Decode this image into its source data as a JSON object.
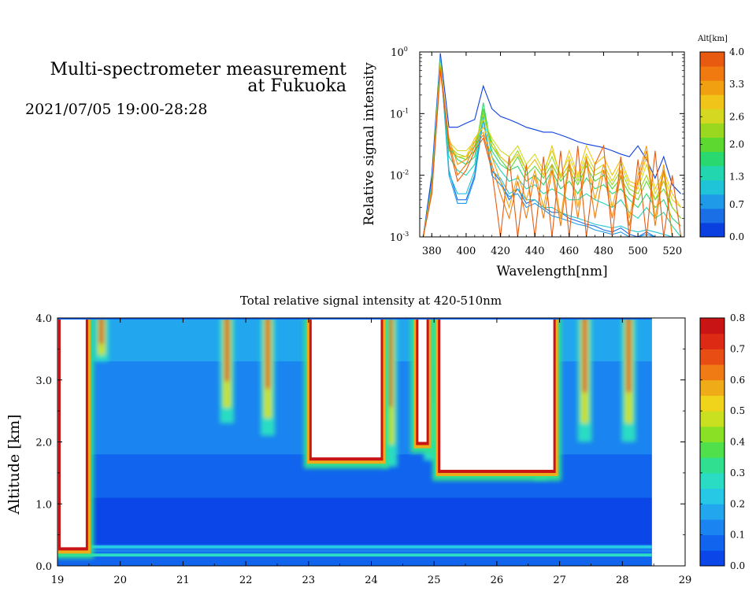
{
  "header": {
    "title_line1": "Multi-spectrometer measurement",
    "title_line2": "at Fukuoka",
    "date_range": "2021/07/05 19:00-28:28"
  },
  "chart_data": [
    {
      "type": "line",
      "xlabel": "Wavelength[nm]",
      "ylabel": "Relative signal intensity",
      "y_scale": "log",
      "xlim": [
        373,
        527
      ],
      "ylim": [
        0.001,
        1
      ],
      "x_ticks": [
        380,
        400,
        420,
        440,
        460,
        480,
        500,
        520
      ],
      "y_ticks": [
        {
          "value": 1,
          "base": "10",
          "exp": "0"
        },
        {
          "value": 0.1,
          "base": "10",
          "exp": "-1"
        },
        {
          "value": 0.01,
          "base": "10",
          "exp": "-2"
        },
        {
          "value": 0.001,
          "base": "10",
          "exp": "-3"
        }
      ],
      "x": [
        375,
        380,
        385,
        390,
        395,
        400,
        405,
        410,
        415,
        420,
        425,
        430,
        435,
        440,
        445,
        450,
        455,
        460,
        465,
        470,
        475,
        480,
        485,
        490,
        495,
        500,
        505,
        510,
        515,
        520,
        525
      ],
      "colorbar": {
        "title": "Alt[km]",
        "min": 0.0,
        "max": 4.0,
        "tick_labels": [
          "4.0",
          "3.3",
          "2.6",
          "2.0",
          "1.3",
          "0.7",
          "0.0"
        ],
        "tick_values": [
          4.0,
          3.3,
          2.6,
          2.0,
          1.3,
          0.7,
          0.0
        ]
      },
      "series": [
        {
          "altitude": 0.0,
          "color": "#0a3fe0",
          "values": [
            0.001,
            0.01,
            0.95,
            0.06,
            0.06,
            0.07,
            0.08,
            0.28,
            0.12,
            0.09,
            0.08,
            0.07,
            0.06,
            0.055,
            0.05,
            0.05,
            0.045,
            0.04,
            0.035,
            0.032,
            0.03,
            0.028,
            0.025,
            0.022,
            0.02,
            0.03,
            0.018,
            0.009,
            0.02,
            0.007,
            0.005
          ]
        },
        {
          "altitude": 0.3,
          "color": "#1a6ee6",
          "values": [
            0.001,
            0.008,
            0.85,
            0.012,
            0.004,
            0.004,
            0.01,
            0.09,
            0.012,
            0.008,
            0.004,
            0.006,
            0.0035,
            0.004,
            0.003,
            0.0025,
            0.0025,
            0.002,
            0.0018,
            0.0016,
            0.0015,
            0.0013,
            0.0012,
            0.0014,
            0.0011,
            0.001,
            0.0012,
            0.001,
            0.001,
            0.001,
            0.001
          ]
        },
        {
          "altitude": 0.6,
          "color": "#1e9ae8",
          "values": [
            0.001,
            0.007,
            0.8,
            0.01,
            0.0035,
            0.0035,
            0.009,
            0.08,
            0.01,
            0.007,
            0.0045,
            0.005,
            0.003,
            0.0035,
            0.0028,
            0.0022,
            0.002,
            0.0018,
            0.0016,
            0.0015,
            0.0013,
            0.0012,
            0.0011,
            0.0012,
            0.001,
            0.001,
            0.0011,
            0.001,
            0.001,
            0.001,
            0.001
          ]
        },
        {
          "altitude": 0.9,
          "color": "#20c4d8",
          "values": [
            0.001,
            0.007,
            0.78,
            0.011,
            0.005,
            0.005,
            0.012,
            0.09,
            0.012,
            0.009,
            0.005,
            0.006,
            0.004,
            0.004,
            0.003,
            0.003,
            0.0025,
            0.0022,
            0.002,
            0.0018,
            0.0016,
            0.0015,
            0.0014,
            0.0015,
            0.0013,
            0.0012,
            0.0013,
            0.0012,
            0.0011,
            0.001,
            0.001
          ]
        },
        {
          "altitude": 1.2,
          "color": "#22d6b0",
          "values": [
            0.001,
            0.007,
            0.75,
            0.02,
            0.012,
            0.01,
            0.015,
            0.12,
            0.02,
            0.012,
            0.008,
            0.009,
            0.006,
            0.007,
            0.005,
            0.006,
            0.005,
            0.004,
            0.004,
            0.005,
            0.004,
            0.0035,
            0.003,
            0.004,
            0.0025,
            0.002,
            0.003,
            0.002,
            0.0025,
            0.0015,
            0.001
          ]
        },
        {
          "altitude": 1.5,
          "color": "#2ad870",
          "values": [
            0.001,
            0.006,
            0.72,
            0.03,
            0.018,
            0.015,
            0.02,
            0.15,
            0.025,
            0.015,
            0.012,
            0.014,
            0.008,
            0.01,
            0.007,
            0.012,
            0.006,
            0.008,
            0.005,
            0.009,
            0.006,
            0.007,
            0.005,
            0.006,
            0.004,
            0.003,
            0.005,
            0.003,
            0.004,
            0.002,
            0.0015
          ]
        },
        {
          "altitude": 1.8,
          "color": "#5cd830",
          "values": [
            0.001,
            0.006,
            0.7,
            0.025,
            0.02,
            0.018,
            0.025,
            0.12,
            0.03,
            0.018,
            0.012,
            0.02,
            0.01,
            0.014,
            0.009,
            0.015,
            0.008,
            0.012,
            0.007,
            0.014,
            0.008,
            0.01,
            0.006,
            0.009,
            0.005,
            0.004,
            0.008,
            0.004,
            0.006,
            0.003,
            0.002
          ]
        },
        {
          "altitude": 2.1,
          "color": "#9ad820",
          "values": [
            0.001,
            0.006,
            0.68,
            0.03,
            0.022,
            0.02,
            0.03,
            0.1,
            0.035,
            0.02,
            0.015,
            0.025,
            0.012,
            0.018,
            0.01,
            0.02,
            0.009,
            0.015,
            0.008,
            0.018,
            0.01,
            0.012,
            0.007,
            0.012,
            0.006,
            0.005,
            0.01,
            0.004,
            0.008,
            0.003,
            0.002
          ]
        },
        {
          "altitude": 2.4,
          "color": "#d4d820",
          "values": [
            0.001,
            0.006,
            0.66,
            0.035,
            0.025,
            0.025,
            0.035,
            0.08,
            0.04,
            0.025,
            0.02,
            0.03,
            0.015,
            0.022,
            0.012,
            0.025,
            0.01,
            0.02,
            0.009,
            0.022,
            0.012,
            0.015,
            0.008,
            0.015,
            0.007,
            0.006,
            0.015,
            0.005,
            0.01,
            0.004,
            0.003
          ]
        },
        {
          "altitude": 2.7,
          "color": "#f0c418",
          "values": [
            0.001,
            0.006,
            0.62,
            0.03,
            0.02,
            0.02,
            0.04,
            0.06,
            0.03,
            0.02,
            0.015,
            0.022,
            0.012,
            0.018,
            0.01,
            0.03,
            0.009,
            0.025,
            0.01,
            0.03,
            0.015,
            0.02,
            0.01,
            0.018,
            0.008,
            0.007,
            0.02,
            0.006,
            0.012,
            0.005,
            0.003
          ]
        },
        {
          "altitude": 3.0,
          "color": "#f0a010",
          "values": [
            0.001,
            0.006,
            0.58,
            0.04,
            0.015,
            0.018,
            0.035,
            0.05,
            0.02,
            0.008,
            0.003,
            0.01,
            0.004,
            0.012,
            0.003,
            0.015,
            0.002,
            0.018,
            0.003,
            0.02,
            0.004,
            0.015,
            0.003,
            0.012,
            0.002,
            0.01,
            0.03,
            0.002,
            0.015,
            0.001,
            0.001
          ]
        },
        {
          "altitude": 3.4,
          "color": "#f07a10",
          "values": [
            0.001,
            0.005,
            0.55,
            0.035,
            0.01,
            0.015,
            0.03,
            0.045,
            0.015,
            0.005,
            0.002,
            0.008,
            0.002,
            0.01,
            0.002,
            0.012,
            0.0015,
            0.015,
            0.002,
            0.018,
            0.002,
            0.012,
            0.002,
            0.01,
            0.0015,
            0.008,
            0.025,
            0.0015,
            0.012,
            0.001,
            0.001
          ]
        },
        {
          "altitude": 3.8,
          "color": "#e85a10",
          "values": [
            0.001,
            0.005,
            0.5,
            0.03,
            0.008,
            0.012,
            0.025,
            0.04,
            0.012,
            0.001,
            0.02,
            0.001,
            0.015,
            0.001,
            0.02,
            0.001,
            0.025,
            0.001,
            0.03,
            0.001,
            0.015,
            0.03,
            0.001,
            0.02,
            0.001,
            0.018,
            0.001,
            0.025,
            0.001,
            0.01,
            0.001
          ]
        }
      ]
    },
    {
      "type": "heatmap",
      "title": "Total relative signal intensity at 420-510nm",
      "ylabel": "Altitude [km]",
      "xlim": [
        19,
        29
      ],
      "ylim": [
        0,
        4
      ],
      "x_ticks": [
        "19",
        "20",
        "21",
        "22",
        "23",
        "24",
        "25",
        "26",
        "27",
        "28",
        "29"
      ],
      "y_ticks": [
        "0.0",
        "1.0",
        "2.0",
        "3.0",
        "4.0"
      ],
      "x_data_range": [
        19.0,
        28.47
      ],
      "colorbar": {
        "min": 0.0,
        "max": 0.8,
        "tick_labels": [
          "0.8",
          "0.7",
          "0.6",
          "0.5",
          "0.4",
          "0.3",
          "0.2",
          "0.1",
          "0.0"
        ],
        "tick_values": [
          0.8,
          0.7,
          0.6,
          0.5,
          0.4,
          0.3,
          0.2,
          0.1,
          0.0
        ]
      },
      "cloud_regions": [
        {
          "x_start": 19.05,
          "x_end": 19.45,
          "base_km": 0.3
        },
        {
          "x_start": 23.05,
          "x_end": 24.15,
          "base_km": 1.75
        },
        {
          "x_start": 24.75,
          "x_end": 24.88,
          "base_km": 2.0
        },
        {
          "x_start": 25.1,
          "x_end": 26.9,
          "base_km": 1.55
        }
      ],
      "high_intensity_bands": [
        {
          "x_center": 19.7,
          "base_km": 3.3
        },
        {
          "x_center": 21.7,
          "base_km": 2.3
        },
        {
          "x_center": 22.35,
          "base_km": 2.1
        },
        {
          "x_center": 24.3,
          "base_km": 1.6
        },
        {
          "x_center": 24.95,
          "base_km": 1.7
        },
        {
          "x_center": 26.7,
          "base_km": 1.4
        },
        {
          "x_center": 27.4,
          "base_km": 2.0
        },
        {
          "x_center": 28.1,
          "base_km": 2.0
        }
      ]
    }
  ]
}
